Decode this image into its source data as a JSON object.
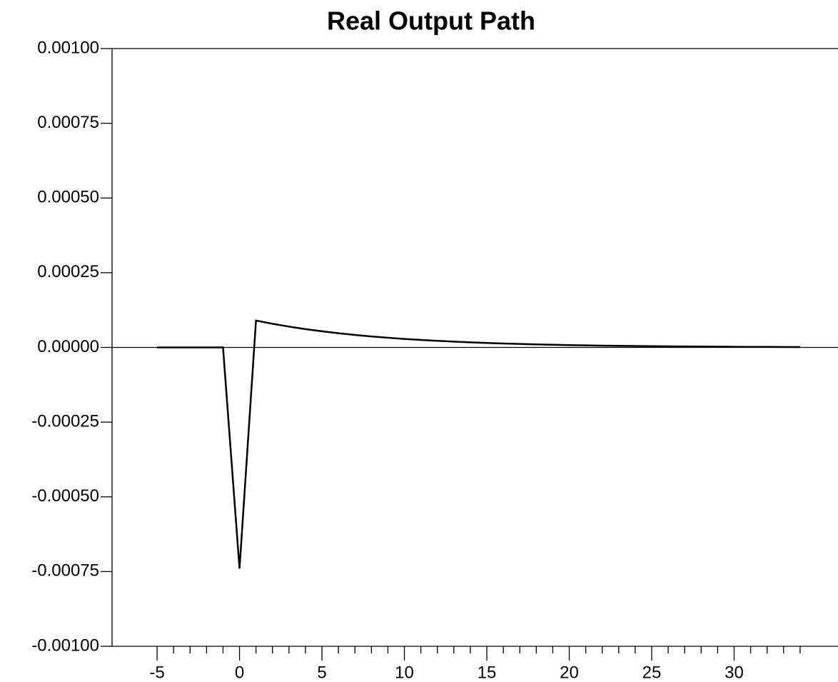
{
  "chart_data": {
    "type": "line",
    "title": "Real Output Path",
    "x": [
      -5,
      -4,
      -3,
      -2,
      -1,
      0,
      1,
      2,
      3,
      4,
      5,
      6,
      7,
      8,
      9,
      10,
      11,
      12,
      13,
      14,
      15,
      16,
      17,
      18,
      19,
      20,
      21,
      22,
      23,
      24,
      25,
      26,
      27,
      28,
      29,
      30,
      31,
      32,
      33,
      34
    ],
    "series": [
      {
        "name": "Real Output",
        "color": "#000000",
        "values": [
          0,
          0,
          0,
          0,
          0,
          -0.00074,
          9e-05,
          7.92e-05,
          6.97e-05,
          6.13e-05,
          5.4e-05,
          4.75e-05,
          4.18e-05,
          3.68e-05,
          3.24e-05,
          2.85e-05,
          2.51e-05,
          2.21e-05,
          1.94e-05,
          1.71e-05,
          1.5e-05,
          1.32e-05,
          1.16e-05,
          1.02e-05,
          9e-06,
          7.9e-06,
          7e-06,
          6.1e-06,
          5.4e-06,
          4.8e-06,
          4.2e-06,
          3.7e-06,
          3.2e-06,
          2.9e-06,
          2.5e-06,
          2.2e-06,
          1.9e-06,
          1.7e-06,
          1.5e-06,
          1.3e-06
        ]
      }
    ],
    "xlim": [
      -7.73,
      36.3
    ],
    "xticks": [
      -5,
      0,
      5,
      10,
      15,
      20,
      25,
      30
    ],
    "xminorticks": [
      -4,
      -3,
      -2,
      -1,
      1,
      2,
      3,
      4,
      6,
      7,
      8,
      9,
      11,
      12,
      13,
      14,
      16,
      17,
      18,
      19,
      21,
      22,
      23,
      24,
      26,
      27,
      28,
      29,
      31,
      32,
      33,
      34
    ],
    "ylim": [
      -0.001,
      0.001
    ],
    "yticks": [
      {
        "value": 0.001,
        "label": "0.00100"
      },
      {
        "value": 0.00075,
        "label": "0.00075"
      },
      {
        "value": 0.0005,
        "label": "0.00050"
      },
      {
        "value": 0.00025,
        "label": "0.00025"
      },
      {
        "value": 0,
        "label": "0.00000"
      },
      {
        "value": -0.00025,
        "label": "-0.00025"
      },
      {
        "value": -0.0005,
        "label": "-0.00050"
      },
      {
        "value": -0.00075,
        "label": "-0.00075"
      },
      {
        "value": -0.001,
        "label": "-0.00100"
      }
    ],
    "zero_line": true,
    "grid": false
  }
}
